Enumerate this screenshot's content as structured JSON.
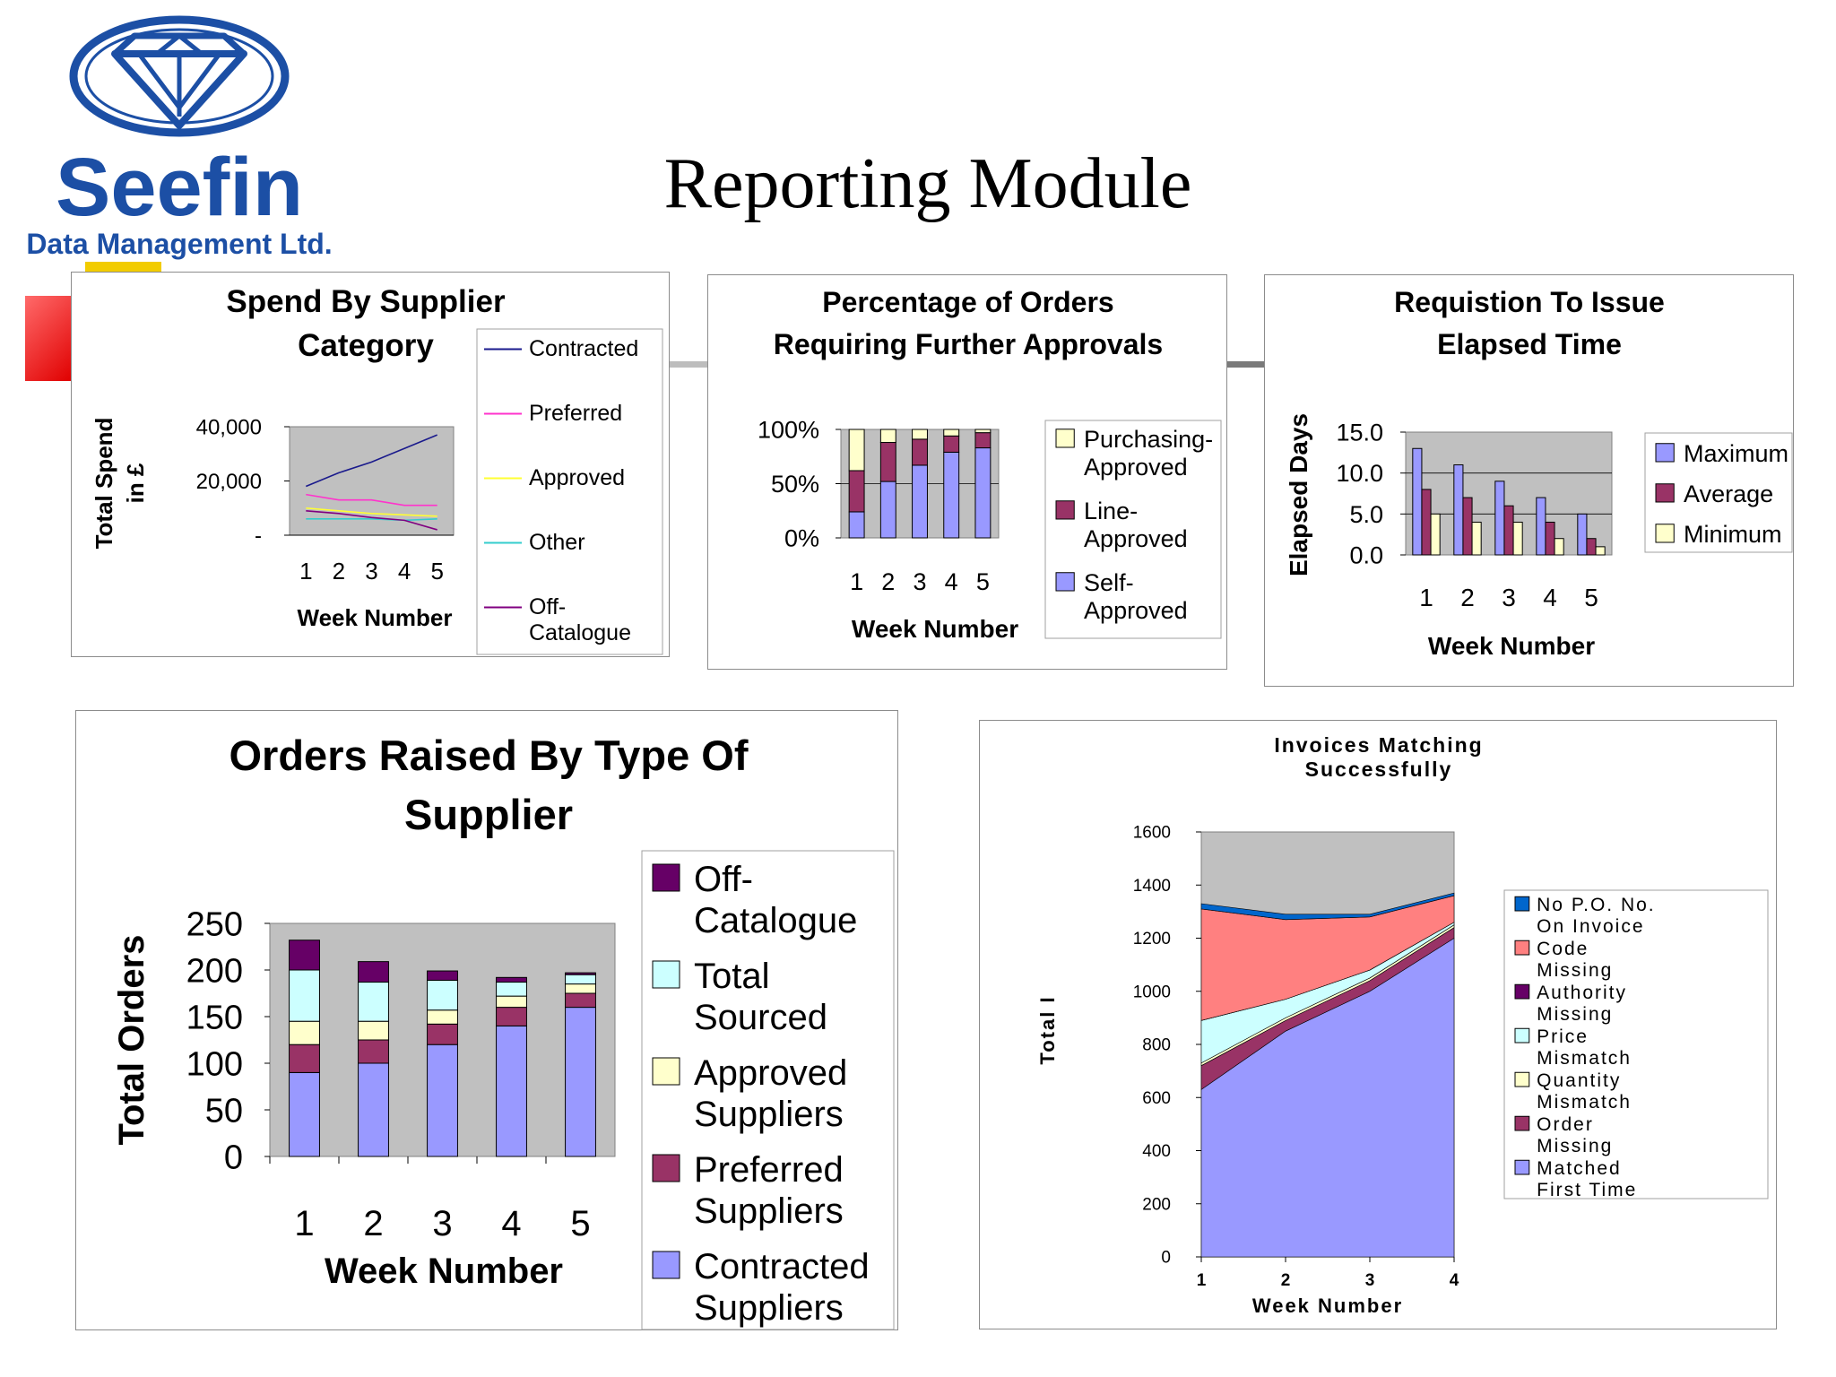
{
  "page": {
    "title": "Reporting Module"
  },
  "logo": {
    "name": "Seefin",
    "tagline": "Data Management Ltd.",
    "icon": "diamond-logo-icon",
    "brand_color": "#1c4fa5"
  },
  "chart_data": [
    {
      "id": "spend",
      "type": "line",
      "title": [
        "Spend By Supplier",
        "Category"
      ],
      "xlabel": "Week Number",
      "ylabel": [
        "Total Spend",
        "in £"
      ],
      "x": [
        "1",
        "2",
        "3",
        "4",
        "5"
      ],
      "ylim": [
        0,
        40000
      ],
      "yticks": [
        "-",
        "20,000",
        "40,000"
      ],
      "ytick_values": [
        0,
        20000,
        40000
      ],
      "legend_position": "right",
      "series": [
        {
          "name": "Contracted",
          "color": "#1a1a8c",
          "values": [
            18000,
            23000,
            27000,
            32000,
            37000
          ]
        },
        {
          "name": "Preferred",
          "color": "#ff33cc",
          "values": [
            15000,
            13000,
            13000,
            11000,
            11000
          ]
        },
        {
          "name": "Approved",
          "color": "#ffff33",
          "values": [
            10000,
            9000,
            8000,
            7500,
            7000
          ]
        },
        {
          "name": "Other",
          "color": "#33cccc",
          "values": [
            6000,
            6000,
            6000,
            5500,
            6000
          ]
        },
        {
          "name": "Off-\nCatalogue",
          "color": "#800080",
          "values": [
            9000,
            8000,
            6500,
            5500,
            2000
          ]
        }
      ]
    },
    {
      "id": "approvals",
      "type": "bar",
      "stacked": true,
      "percent": true,
      "title": [
        "Percentage of Orders",
        "Requiring Further Approvals"
      ],
      "xlabel": "Week Number",
      "categories": [
        "1",
        "2",
        "3",
        "4",
        "5"
      ],
      "ylim": [
        0,
        100
      ],
      "yticks": [
        "0%",
        "50%",
        "100%"
      ],
      "ytick_values": [
        0,
        50,
        100
      ],
      "legend_position": "right",
      "series": [
        {
          "name": "Self-\nApproved",
          "color": "#9999ff",
          "values": [
            24,
            52,
            67,
            79,
            83
          ]
        },
        {
          "name": "Line-\nApproved",
          "color": "#993366",
          "values": [
            38,
            36,
            24,
            15,
            14
          ]
        },
        {
          "name": "Purchasing-\nApproved",
          "color": "#ffffcc",
          "values": [
            38,
            12,
            9,
            6,
            3
          ]
        }
      ]
    },
    {
      "id": "elapsed",
      "type": "bar",
      "title": [
        "Requistion To Issue",
        "Elapsed Time"
      ],
      "xlabel": "Week Number",
      "ylabel": "Elapsed Days",
      "categories": [
        "1",
        "2",
        "3",
        "4",
        "5"
      ],
      "ylim": [
        0,
        15
      ],
      "yticks": [
        "0.0",
        "5.0",
        "10.0",
        "15.0"
      ],
      "ytick_values": [
        0,
        5,
        10,
        15
      ],
      "legend_position": "right",
      "series": [
        {
          "name": "Maximum",
          "color": "#9999ff",
          "values": [
            13,
            11,
            9,
            7,
            5
          ]
        },
        {
          "name": "Average",
          "color": "#993366",
          "values": [
            8,
            7,
            6,
            4,
            2
          ]
        },
        {
          "name": "Minimum",
          "color": "#ffffcc",
          "values": [
            5,
            4,
            4,
            2,
            1
          ]
        }
      ]
    },
    {
      "id": "orders",
      "type": "bar",
      "stacked": true,
      "title": [
        "Orders Raised By Type Of",
        "Supplier"
      ],
      "xlabel": "Week Number",
      "ylabel": "Total Orders",
      "categories": [
        "1",
        "2",
        "3",
        "4",
        "5"
      ],
      "ylim": [
        0,
        250
      ],
      "yticks": [
        "0",
        "50",
        "100",
        "150",
        "200",
        "250"
      ],
      "ytick_values": [
        0,
        50,
        100,
        150,
        200,
        250
      ],
      "legend_position": "right",
      "series": [
        {
          "name": "Contracted\nSuppliers",
          "color": "#9999ff",
          "values": [
            90,
            100,
            120,
            140,
            160
          ]
        },
        {
          "name": "Preferred\nSuppliers",
          "color": "#993366",
          "values": [
            30,
            25,
            22,
            20,
            15
          ]
        },
        {
          "name": "Approved\nSuppliers",
          "color": "#ffffcc",
          "values": [
            25,
            20,
            15,
            12,
            10
          ]
        },
        {
          "name": "Total\nSourced",
          "color": "#ccffff",
          "values": [
            55,
            42,
            32,
            15,
            10
          ]
        },
        {
          "name": "Off-\nCatalogue",
          "color": "#660066",
          "values": [
            32,
            22,
            10,
            5,
            2
          ]
        }
      ]
    },
    {
      "id": "invoices",
      "type": "area",
      "stacked": true,
      "title": [
        "Invoices Matching",
        "Successfully"
      ],
      "xlabel": "Week Number",
      "ylabel": "Total I",
      "x": [
        "1",
        "2",
        "3",
        "4"
      ],
      "ylim": [
        0,
        1600
      ],
      "yticks": [
        "0",
        "200",
        "400",
        "600",
        "800",
        "1000",
        "1200",
        "1400",
        "1600"
      ],
      "ytick_values": [
        0,
        200,
        400,
        600,
        800,
        1000,
        1200,
        1400,
        1600
      ],
      "legend_position": "right",
      "series": [
        {
          "name": "Matched\nFirst Time",
          "color": "#9999ff",
          "values": [
            630,
            850,
            1000,
            1200
          ]
        },
        {
          "name": "Order\nMissing",
          "color": "#993366",
          "values": [
            90,
            40,
            40,
            40
          ]
        },
        {
          "name": "Quantity\nMismatch",
          "color": "#ffffcc",
          "values": [
            10,
            10,
            10,
            10
          ]
        },
        {
          "name": "Price\nMismatch",
          "color": "#ccffff",
          "values": [
            160,
            70,
            30,
            10
          ]
        },
        {
          "name": "Authority\nMissing",
          "color": "#660066",
          "values": [
            0,
            0,
            0,
            0
          ]
        },
        {
          "name": "Code\nMissing",
          "color": "#ff8080",
          "values": [
            420,
            300,
            200,
            100
          ]
        },
        {
          "name": "No P.O. No.\nOn Invoice",
          "color": "#0066cc",
          "values": [
            20,
            20,
            10,
            10
          ]
        }
      ]
    }
  ]
}
